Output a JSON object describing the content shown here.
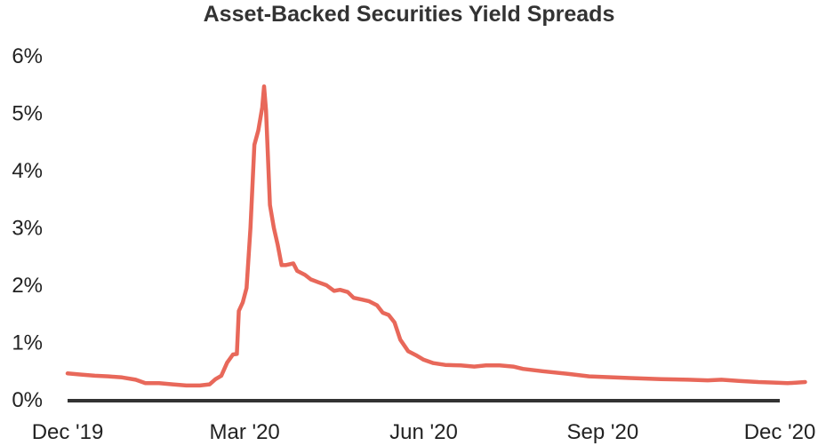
{
  "chart_data": {
    "type": "line",
    "title": "Asset-Backed Securities Yield Spreads",
    "xlabel": "",
    "ylabel": "",
    "x_range": [
      "2019-12-01",
      "2020-12-01"
    ],
    "ylim": [
      0,
      6
    ],
    "y_ticks": [
      0,
      1,
      2,
      3,
      4,
      5,
      6
    ],
    "y_tick_labels": [
      "0%",
      "1%",
      "2%",
      "3%",
      "4%",
      "5%",
      "6%"
    ],
    "x_ticks": [
      "2019-12-01",
      "2020-03-01",
      "2020-06-01",
      "2020-09-01",
      "2020-12-01"
    ],
    "x_tick_labels": [
      "Dec '19",
      "Mar '20",
      "Jun '20",
      "Sep '20",
      "Dec '20"
    ],
    "grid": false,
    "legend": "none",
    "series": [
      {
        "color": "#e8685a",
        "points": [
          [
            "2019-12-01",
            0.46
          ],
          [
            "2019-12-08",
            0.44
          ],
          [
            "2019-12-15",
            0.42
          ],
          [
            "2019-12-22",
            0.41
          ],
          [
            "2019-12-29",
            0.39
          ],
          [
            "2020-01-05",
            0.35
          ],
          [
            "2020-01-10",
            0.29
          ],
          [
            "2020-01-17",
            0.29
          ],
          [
            "2020-01-24",
            0.27
          ],
          [
            "2020-01-31",
            0.25
          ],
          [
            "2020-02-07",
            0.25
          ],
          [
            "2020-02-12",
            0.27
          ],
          [
            "2020-02-15",
            0.36
          ],
          [
            "2020-02-18",
            0.42
          ],
          [
            "2020-02-21",
            0.65
          ],
          [
            "2020-02-24",
            0.79
          ],
          [
            "2020-02-26",
            0.8
          ],
          [
            "2020-02-27",
            1.55
          ],
          [
            "2020-02-29",
            1.7
          ],
          [
            "2020-03-02",
            1.95
          ],
          [
            "2020-03-04",
            3.0
          ],
          [
            "2020-03-06",
            4.45
          ],
          [
            "2020-03-08",
            4.7
          ],
          [
            "2020-03-10",
            5.1
          ],
          [
            "2020-03-11",
            5.47
          ],
          [
            "2020-03-12",
            5.05
          ],
          [
            "2020-03-14",
            3.4
          ],
          [
            "2020-03-16",
            3.0
          ],
          [
            "2020-03-18",
            2.7
          ],
          [
            "2020-03-20",
            2.35
          ],
          [
            "2020-03-22",
            2.35
          ],
          [
            "2020-03-26",
            2.38
          ],
          [
            "2020-03-28",
            2.25
          ],
          [
            "2020-04-01",
            2.18
          ],
          [
            "2020-04-04",
            2.1
          ],
          [
            "2020-04-08",
            2.05
          ],
          [
            "2020-04-12",
            2.0
          ],
          [
            "2020-04-16",
            1.9
          ],
          [
            "2020-04-19",
            1.92
          ],
          [
            "2020-04-23",
            1.88
          ],
          [
            "2020-04-26",
            1.78
          ],
          [
            "2020-04-30",
            1.75
          ],
          [
            "2020-05-04",
            1.72
          ],
          [
            "2020-05-08",
            1.65
          ],
          [
            "2020-05-11",
            1.52
          ],
          [
            "2020-05-14",
            1.48
          ],
          [
            "2020-05-17",
            1.35
          ],
          [
            "2020-05-20",
            1.05
          ],
          [
            "2020-05-24",
            0.85
          ],
          [
            "2020-05-28",
            0.78
          ],
          [
            "2020-06-01",
            0.7
          ],
          [
            "2020-06-06",
            0.64
          ],
          [
            "2020-06-12",
            0.61
          ],
          [
            "2020-06-20",
            0.6
          ],
          [
            "2020-06-27",
            0.58
          ],
          [
            "2020-07-03",
            0.6
          ],
          [
            "2020-07-10",
            0.6
          ],
          [
            "2020-07-17",
            0.58
          ],
          [
            "2020-07-22",
            0.54
          ],
          [
            "2020-08-01",
            0.5
          ],
          [
            "2020-08-15",
            0.45
          ],
          [
            "2020-08-25",
            0.41
          ],
          [
            "2020-09-01",
            0.4
          ],
          [
            "2020-09-15",
            0.38
          ],
          [
            "2020-10-01",
            0.36
          ],
          [
            "2020-10-15",
            0.35
          ],
          [
            "2020-10-25",
            0.34
          ],
          [
            "2020-11-01",
            0.35
          ],
          [
            "2020-11-10",
            0.33
          ],
          [
            "2020-11-20",
            0.31
          ],
          [
            "2020-11-28",
            0.3
          ],
          [
            "2020-12-05",
            0.29
          ],
          [
            "2020-12-10",
            0.3
          ],
          [
            "2020-12-14",
            0.31
          ]
        ]
      }
    ]
  }
}
